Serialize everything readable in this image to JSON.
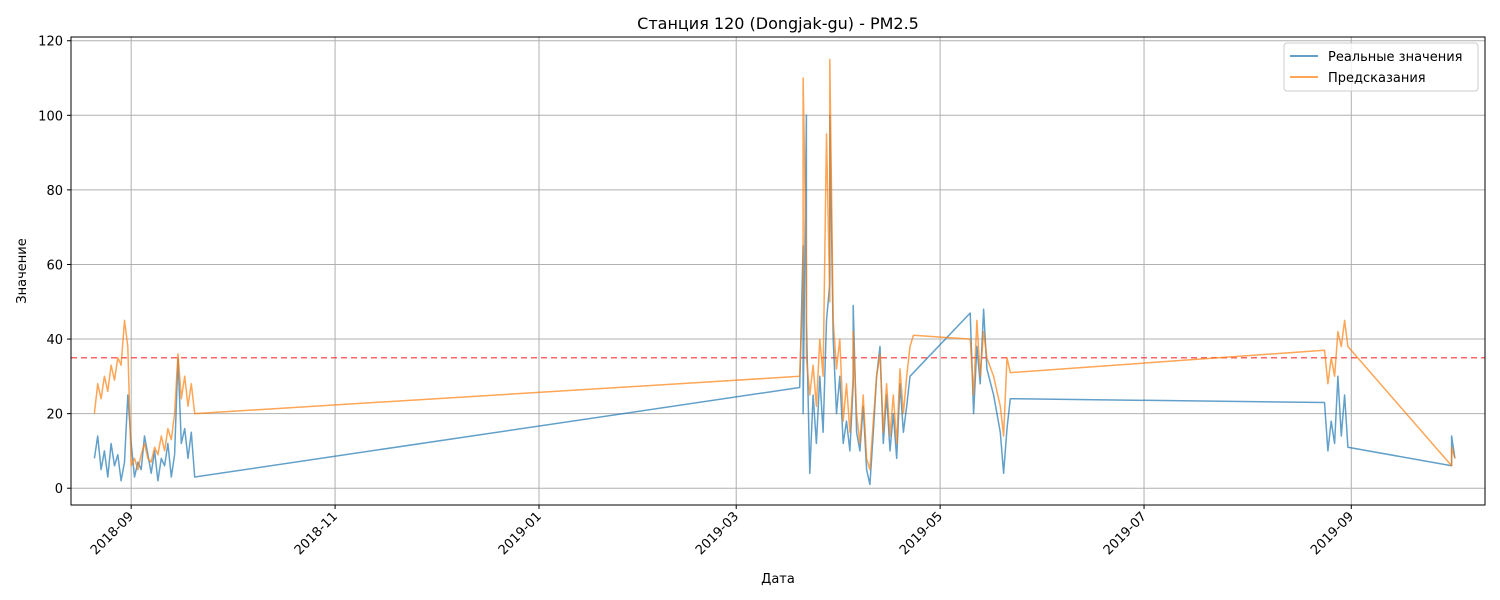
{
  "chart_data": {
    "type": "line",
    "title": "Станция 120 (Dongjak-gu) - PM2.5",
    "xlabel": "Дата",
    "ylabel": "Значение",
    "x_type": "date",
    "xlim": [
      "2018-08-14",
      "2019-10-11"
    ],
    "ylim": [
      -4.5,
      121
    ],
    "x_ticks": [
      "2018-09-01",
      "2018-11-01",
      "2019-01-01",
      "2019-03-01",
      "2019-05-01",
      "2019-07-01",
      "2019-09-01"
    ],
    "x_tick_labels": [
      "2018-09",
      "2018-11",
      "2019-01",
      "2019-03",
      "2019-05",
      "2019-07",
      "2019-09"
    ],
    "y_ticks": [
      0,
      20,
      40,
      60,
      80,
      100,
      120
    ],
    "grid": true,
    "legend_position": "top-right",
    "threshold": {
      "value": 35,
      "color": "#ff0000",
      "style": "dashed"
    },
    "series": [
      {
        "name": "Реальные значения",
        "color": "#1f77b4",
        "points": [
          [
            "2018-08-21",
            8
          ],
          [
            "2018-08-22",
            14
          ],
          [
            "2018-08-23",
            5
          ],
          [
            "2018-08-24",
            10
          ],
          [
            "2018-08-25",
            3
          ],
          [
            "2018-08-26",
            12
          ],
          [
            "2018-08-27",
            6
          ],
          [
            "2018-08-28",
            9
          ],
          [
            "2018-08-29",
            2
          ],
          [
            "2018-08-30",
            7
          ],
          [
            "2018-08-31",
            25
          ],
          [
            "2018-09-01",
            12
          ],
          [
            "2018-09-02",
            3
          ],
          [
            "2018-09-03",
            7
          ],
          [
            "2018-09-04",
            5
          ],
          [
            "2018-09-05",
            14
          ],
          [
            "2018-09-06",
            9
          ],
          [
            "2018-09-07",
            4
          ],
          [
            "2018-09-08",
            10
          ],
          [
            "2018-09-09",
            2
          ],
          [
            "2018-09-10",
            8
          ],
          [
            "2018-09-11",
            6
          ],
          [
            "2018-09-12",
            12
          ],
          [
            "2018-09-13",
            3
          ],
          [
            "2018-09-14",
            9
          ],
          [
            "2018-09-15",
            35
          ],
          [
            "2018-09-16",
            12
          ],
          [
            "2018-09-17",
            16
          ],
          [
            "2018-09-18",
            8
          ],
          [
            "2018-09-19",
            15
          ],
          [
            "2018-09-20",
            3
          ],
          [
            "2019-03-20",
            27
          ],
          [
            "2019-03-21",
            65
          ],
          [
            "2019-03-21",
            20
          ],
          [
            "2019-03-22",
            100
          ],
          [
            "2019-03-22",
            45
          ],
          [
            "2019-03-23",
            4
          ],
          [
            "2019-03-24",
            25
          ],
          [
            "2019-03-25",
            12
          ],
          [
            "2019-03-26",
            30
          ],
          [
            "2019-03-27",
            15
          ],
          [
            "2019-03-28",
            45
          ],
          [
            "2019-03-29",
            55
          ],
          [
            "2019-03-29",
            100
          ],
          [
            "2019-03-30",
            40
          ],
          [
            "2019-03-31",
            20
          ],
          [
            "2019-04-01",
            30
          ],
          [
            "2019-04-02",
            12
          ],
          [
            "2019-04-03",
            18
          ],
          [
            "2019-04-04",
            10
          ],
          [
            "2019-04-05",
            28
          ],
          [
            "2019-04-05",
            49
          ],
          [
            "2019-04-06",
            15
          ],
          [
            "2019-04-07",
            10
          ],
          [
            "2019-04-08",
            22
          ],
          [
            "2019-04-09",
            5
          ],
          [
            "2019-04-10",
            1
          ],
          [
            "2019-04-11",
            15
          ],
          [
            "2019-04-12",
            30
          ],
          [
            "2019-04-13",
            38
          ],
          [
            "2019-04-14",
            12
          ],
          [
            "2019-04-15",
            25
          ],
          [
            "2019-04-16",
            10
          ],
          [
            "2019-04-17",
            20
          ],
          [
            "2019-04-18",
            8
          ],
          [
            "2019-04-19",
            28
          ],
          [
            "2019-04-20",
            15
          ],
          [
            "2019-04-21",
            22
          ],
          [
            "2019-04-22",
            30
          ],
          [
            "2019-05-10",
            47
          ],
          [
            "2019-05-11",
            20
          ],
          [
            "2019-05-12",
            38
          ],
          [
            "2019-05-13",
            28
          ],
          [
            "2019-05-14",
            48
          ],
          [
            "2019-05-15",
            32
          ],
          [
            "2019-05-17",
            25
          ],
          [
            "2019-05-19",
            15
          ],
          [
            "2019-05-20",
            4
          ],
          [
            "2019-05-21",
            16
          ],
          [
            "2019-05-22",
            24
          ],
          [
            "2019-08-24",
            23
          ],
          [
            "2019-08-25",
            10
          ],
          [
            "2019-08-26",
            18
          ],
          [
            "2019-08-27",
            12
          ],
          [
            "2019-08-28",
            30
          ],
          [
            "2019-08-29",
            14
          ],
          [
            "2019-08-30",
            25
          ],
          [
            "2019-08-31",
            11
          ],
          [
            "2019-10-01",
            6
          ],
          [
            "2019-10-01",
            14
          ],
          [
            "2019-10-02",
            8
          ]
        ]
      },
      {
        "name": "Предсказания",
        "color": "#ff7f0e",
        "points": [
          [
            "2018-08-21",
            20
          ],
          [
            "2018-08-22",
            28
          ],
          [
            "2018-08-23",
            24
          ],
          [
            "2018-08-24",
            30
          ],
          [
            "2018-08-25",
            26
          ],
          [
            "2018-08-26",
            33
          ],
          [
            "2018-08-27",
            29
          ],
          [
            "2018-08-28",
            35
          ],
          [
            "2018-08-29",
            33
          ],
          [
            "2018-08-30",
            45
          ],
          [
            "2018-08-31",
            38
          ],
          [
            "2018-09-01",
            6
          ],
          [
            "2018-09-02",
            8
          ],
          [
            "2018-09-03",
            5
          ],
          [
            "2018-09-04",
            9
          ],
          [
            "2018-09-05",
            12
          ],
          [
            "2018-09-06",
            8
          ],
          [
            "2018-09-07",
            7
          ],
          [
            "2018-09-08",
            11
          ],
          [
            "2018-09-09",
            9
          ],
          [
            "2018-09-10",
            14
          ],
          [
            "2018-09-11",
            10
          ],
          [
            "2018-09-12",
            16
          ],
          [
            "2018-09-13",
            13
          ],
          [
            "2018-09-14",
            20
          ],
          [
            "2018-09-15",
            36
          ],
          [
            "2018-09-16",
            24
          ],
          [
            "2018-09-17",
            30
          ],
          [
            "2018-09-18",
            22
          ],
          [
            "2018-09-19",
            28
          ],
          [
            "2018-09-20",
            20
          ],
          [
            "2019-03-20",
            30
          ],
          [
            "2019-03-21",
            55
          ],
          [
            "2019-03-21",
            110
          ],
          [
            "2019-03-22",
            60
          ],
          [
            "2019-03-22",
            35
          ],
          [
            "2019-03-23",
            25
          ],
          [
            "2019-03-24",
            33
          ],
          [
            "2019-03-25",
            22
          ],
          [
            "2019-03-26",
            40
          ],
          [
            "2019-03-27",
            30
          ],
          [
            "2019-03-28",
            95
          ],
          [
            "2019-03-29",
            50
          ],
          [
            "2019-03-29",
            115
          ],
          [
            "2019-03-30",
            45
          ],
          [
            "2019-03-31",
            32
          ],
          [
            "2019-04-01",
            40
          ],
          [
            "2019-04-02",
            18
          ],
          [
            "2019-04-03",
            28
          ],
          [
            "2019-04-04",
            15
          ],
          [
            "2019-04-05",
            30
          ],
          [
            "2019-04-05",
            42
          ],
          [
            "2019-04-06",
            20
          ],
          [
            "2019-04-07",
            12
          ],
          [
            "2019-04-08",
            25
          ],
          [
            "2019-04-09",
            8
          ],
          [
            "2019-04-10",
            5
          ],
          [
            "2019-04-11",
            18
          ],
          [
            "2019-04-12",
            30
          ],
          [
            "2019-04-13",
            36
          ],
          [
            "2019-04-14",
            15
          ],
          [
            "2019-04-15",
            28
          ],
          [
            "2019-04-16",
            14
          ],
          [
            "2019-04-17",
            25
          ],
          [
            "2019-04-18",
            12
          ],
          [
            "2019-04-19",
            32
          ],
          [
            "2019-04-20",
            20
          ],
          [
            "2019-04-21",
            30
          ],
          [
            "2019-04-22",
            38
          ],
          [
            "2019-04-23",
            41
          ],
          [
            "2019-05-10",
            40
          ],
          [
            "2019-05-11",
            25
          ],
          [
            "2019-05-12",
            45
          ],
          [
            "2019-05-13",
            30
          ],
          [
            "2019-05-14",
            42
          ],
          [
            "2019-05-15",
            35
          ],
          [
            "2019-05-17",
            30
          ],
          [
            "2019-05-19",
            22
          ],
          [
            "2019-05-20",
            14
          ],
          [
            "2019-05-21",
            35
          ],
          [
            "2019-05-22",
            31
          ],
          [
            "2019-08-24",
            37
          ],
          [
            "2019-08-25",
            28
          ],
          [
            "2019-08-26",
            35
          ],
          [
            "2019-08-27",
            30
          ],
          [
            "2019-08-28",
            42
          ],
          [
            "2019-08-29",
            38
          ],
          [
            "2019-08-30",
            45
          ],
          [
            "2019-08-31",
            38
          ],
          [
            "2019-10-01",
            6
          ],
          [
            "2019-10-01",
            11
          ],
          [
            "2019-10-02",
            8
          ]
        ]
      }
    ]
  }
}
